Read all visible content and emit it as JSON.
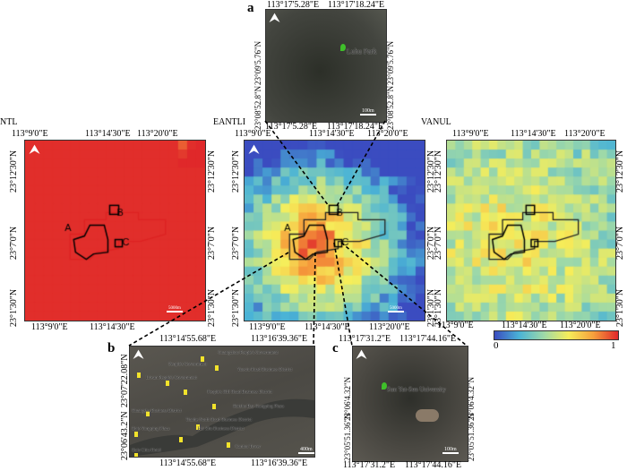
{
  "panels": {
    "ntl": {
      "title": "NTL",
      "top_ticks": [
        "113°9'0\"E",
        "113°14'30\"E",
        "113°20'0\"E"
      ],
      "bottom_ticks": [
        "113°9'0\"E",
        "113°14'30\"E",
        "113°20'0\"E"
      ],
      "left_ticks": [
        "23°12'30\"N",
        "23°7'0\"N",
        "23°1'30\"N"
      ],
      "right_ticks": [
        "23°12'30\"N",
        "23°7'0\"N",
        "23°1'30\"N"
      ],
      "scale": "5000m",
      "region_labels": [
        "A",
        "B",
        "C"
      ]
    },
    "eantli": {
      "title": "EANTLI",
      "top_ticks": [
        "113°9'0\"E",
        "113°14'30\"E",
        "113°20'0\"E"
      ],
      "bottom_ticks": [
        "113°9'0\"E",
        "113°14'30\"E",
        "113°20'0\"E"
      ],
      "left_ticks": [
        "23°12'30\"N",
        "23°7'0\"N",
        "23°1'30\"N"
      ],
      "right_ticks": [
        "23°12'30\"N",
        "23°7'0\"N",
        "23°1'30\"N"
      ],
      "scale": "5000m",
      "region_labels": [
        "A",
        "B",
        "C"
      ]
    },
    "vanul": {
      "title": "VANUL",
      "top_ticks": [
        "113°9'0\"E",
        "113°14'30\"E",
        "113°20'0\"E"
      ],
      "bottom_ticks": [
        "113°9'0\"E",
        "113°14'30\"E",
        "113°20'0\"E"
      ],
      "left_ticks": [
        "23°12'30\"N",
        "23°7'0\"N",
        "23°1'30\"N"
      ],
      "right_ticks": [
        "23°12'30\"N",
        "23°7'0\"N",
        "23°1'30\"N"
      ]
    },
    "a": {
      "label": "a",
      "top_ticks": [
        "113°17'5.28\"E",
        "113°17'18.24\"E"
      ],
      "bottom_ticks": [
        "113°17'5.28\"E",
        "113°17'18.24\"E"
      ],
      "left_ticks": [
        "23°09'5.76\"N",
        "23°08'52.8\"N"
      ],
      "right_ticks": [
        "23°09'5.76\"N",
        "23°08'52.8\"N"
      ],
      "place": "Luhu Park",
      "scale": "100m"
    },
    "b": {
      "label": "b",
      "top_ticks": [
        "113°14'55.68\"E",
        "113°16'39.36\"E"
      ],
      "bottom_ticks": [
        "113°14'55.68\"E",
        "113°16'39.36\"E"
      ],
      "left_ticks": [
        "23°07'22.08\"N",
        "23°06'43.2\"N"
      ],
      "right_ticks": [
        "23°07'22.08\"N",
        "23°06'43.2\"N"
      ],
      "places": [
        "Guangzhou People's Government",
        "People's Government",
        "Yuexiu Road Business District",
        "Liwan People's Government",
        "People's Hill Road Business District",
        "Haizhu Bay Kangping Plaza",
        "Huangsha Business District",
        "Tianhe North Road Business District",
        "Baie Yongqing Plaza",
        "Hai Zhu Business District",
        "Baie Chia Hotel",
        "Canton Tower"
      ],
      "scale": "400m"
    },
    "c": {
      "label": "c",
      "top_ticks": [
        "113°17'31.2\"E",
        "113°17'44.16\"E"
      ],
      "bottom_ticks": [
        "113°17'31.2\"E",
        "113°17'44.16\"E"
      ],
      "left_ticks": [
        "23°06'4.32\"N",
        "23°05'51.36\"N"
      ],
      "right_ticks": [
        "23°06'4.32\"N",
        "23°05'51.36\"N"
      ],
      "place": "Sun Yat-Sen University",
      "scale": "100m"
    }
  },
  "colorbar": {
    "min": "0",
    "max": "1",
    "colors": [
      "#3b4cc0",
      "#4ab3d6",
      "#9ed9a8",
      "#f6ee5a",
      "#f6a03c",
      "#e0282a"
    ]
  }
}
